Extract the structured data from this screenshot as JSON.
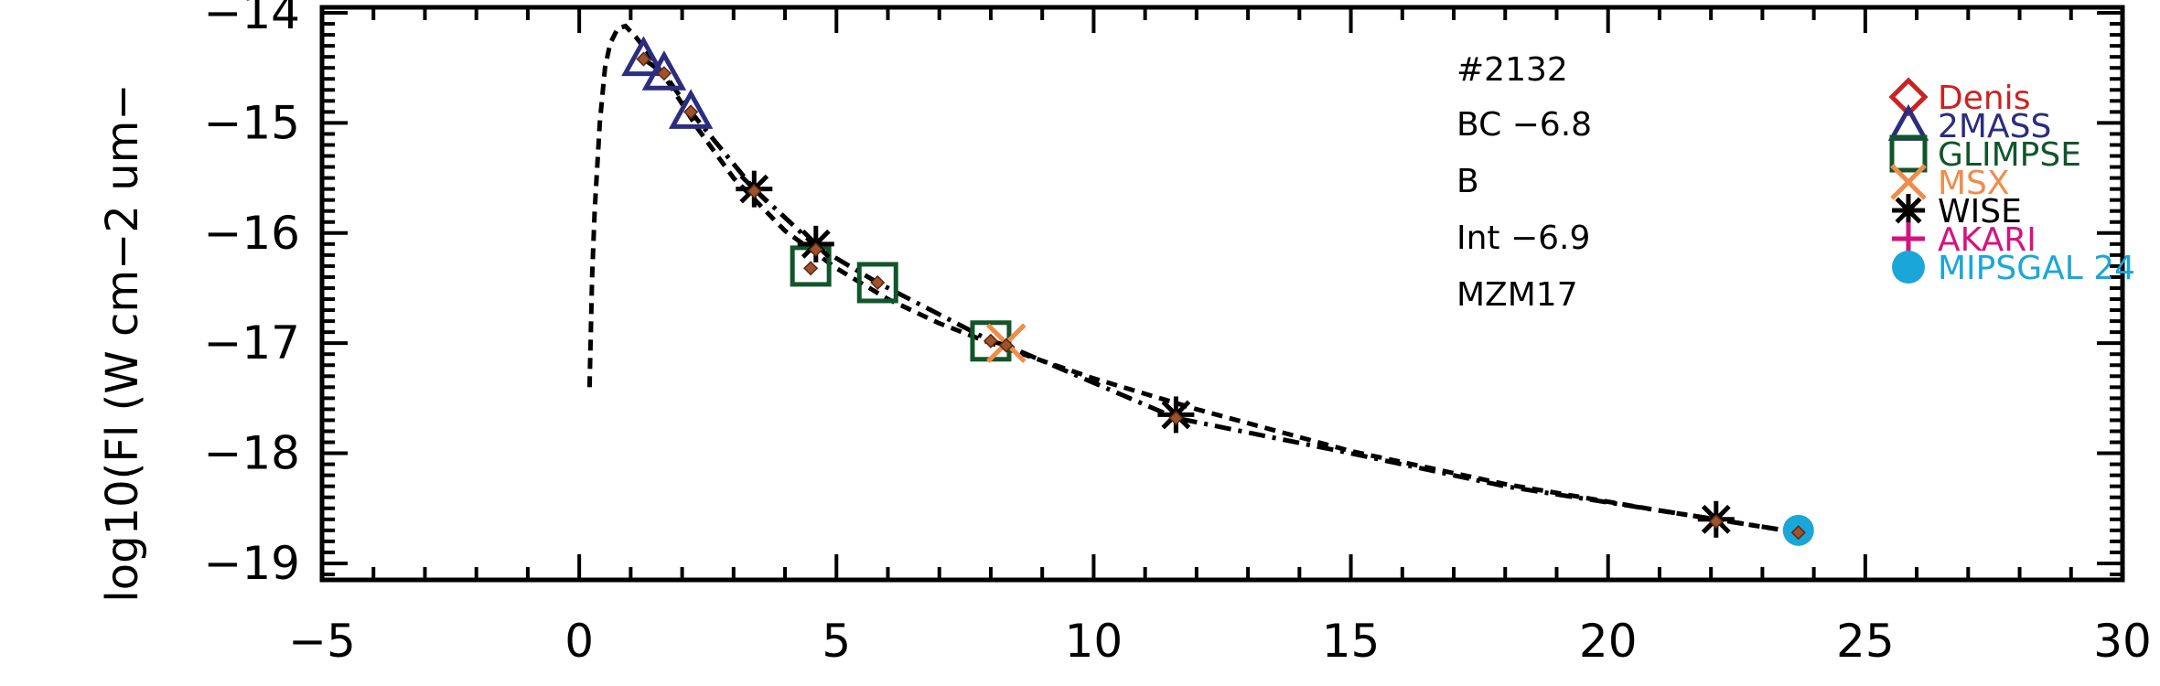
{
  "chart_data": {
    "type": "scatter",
    "title": "",
    "xlabel": "",
    "ylabel": "log10(Fl (W cm−2 um−",
    "xlim": [
      -5,
      30
    ],
    "ylim": [
      -19.15,
      -13.95
    ],
    "x_ticks": [
      -5,
      0,
      5,
      10,
      15,
      20,
      25,
      30
    ],
    "x_tick_labels": [
      "−5",
      "0",
      "5",
      "10",
      "15",
      "20",
      "25",
      "30"
    ],
    "y_ticks": [
      -19,
      -18,
      -17,
      -16,
      -15,
      -14
    ],
    "y_tick_labels": [
      "−19",
      "−18",
      "−17",
      "−16",
      "−15",
      "−14"
    ],
    "annotations": [
      "#2132",
      "BC −6.8",
      "B",
      "Int −6.9",
      "MZM17"
    ],
    "legend": [
      {
        "name": "Denis",
        "marker": "diamond",
        "color": "#cc2222"
      },
      {
        "name": "2MASS",
        "marker": "triangle",
        "color": "#2b2d7e"
      },
      {
        "name": "GLIMPSE",
        "marker": "square",
        "color": "#11552a"
      },
      {
        "name": "MSX",
        "marker": "x",
        "color": "#f08c4a"
      },
      {
        "name": "WISE",
        "marker": "asterisk",
        "color": "#000000"
      },
      {
        "name": "AKARI",
        "marker": "plus",
        "color": "#d4137f"
      },
      {
        "name": "MIPSGAL 24",
        "marker": "circle",
        "color": "#1aa6d8"
      }
    ],
    "series": [
      {
        "name": "2MASS",
        "marker": "triangle",
        "color": "#2b2d7e",
        "x": [
          1.25,
          1.65,
          2.17
        ],
        "y": [
          -14.42,
          -14.55,
          -14.9
        ]
      },
      {
        "name": "GLIMPSE",
        "marker": "square",
        "color": "#11552a",
        "x": [
          4.5,
          5.8,
          8.0
        ],
        "y": [
          -16.3,
          -16.45,
          -16.98
        ]
      },
      {
        "name": "MSX",
        "marker": "x",
        "color": "#f08c4a",
        "x": [
          8.3
        ],
        "y": [
          -17.0
        ]
      },
      {
        "name": "WISE",
        "marker": "asterisk",
        "color": "#000000",
        "x": [
          3.4,
          4.6,
          11.6,
          22.1
        ],
        "y": [
          -15.6,
          -16.1,
          -17.65,
          -18.6
        ]
      },
      {
        "name": "MIPSGAL 24",
        "marker": "circle",
        "color": "#1aa6d8",
        "x": [
          23.7
        ],
        "y": [
          -18.7
        ]
      },
      {
        "name": "model",
        "marker": "small-diamond",
        "color": "#a0522d",
        "x": [
          1.25,
          1.65,
          2.17,
          3.4,
          4.5,
          4.6,
          5.8,
          8.0,
          8.3,
          11.6,
          22.1,
          23.7
        ],
        "y": [
          -14.42,
          -14.55,
          -14.9,
          -15.62,
          -16.32,
          -16.15,
          -16.45,
          -16.98,
          -17.02,
          -17.68,
          -18.62,
          -18.72
        ]
      }
    ],
    "curves": [
      {
        "style": "dashed",
        "x": [
          0.2,
          0.25,
          0.3,
          0.4,
          0.5,
          0.6,
          0.75,
          0.9,
          1.1,
          1.4,
          1.8,
          2.3,
          3.0,
          4.0,
          5.0,
          6.0,
          7.0,
          8.0,
          10.0,
          12.0,
          15.0,
          18.0,
          21.0,
          23.7
        ],
        "y": [
          -17.4,
          -16.4,
          -15.8,
          -15.0,
          -14.5,
          -14.28,
          -14.14,
          -14.12,
          -14.22,
          -14.4,
          -14.68,
          -15.05,
          -15.5,
          -15.98,
          -16.32,
          -16.6,
          -16.82,
          -17.0,
          -17.32,
          -17.6,
          -17.98,
          -18.28,
          -18.52,
          -18.72
        ]
      },
      {
        "style": "dashdot",
        "x": [
          1.25,
          1.65,
          2.17,
          3.4,
          4.6,
          5.8,
          8.0,
          8.3,
          11.6,
          15.0,
          18.0,
          22.1,
          23.7
        ],
        "y": [
          -14.42,
          -14.55,
          -14.9,
          -15.6,
          -16.12,
          -16.45,
          -16.98,
          -17.02,
          -17.68,
          -18.0,
          -18.3,
          -18.6,
          -18.72
        ]
      }
    ]
  }
}
